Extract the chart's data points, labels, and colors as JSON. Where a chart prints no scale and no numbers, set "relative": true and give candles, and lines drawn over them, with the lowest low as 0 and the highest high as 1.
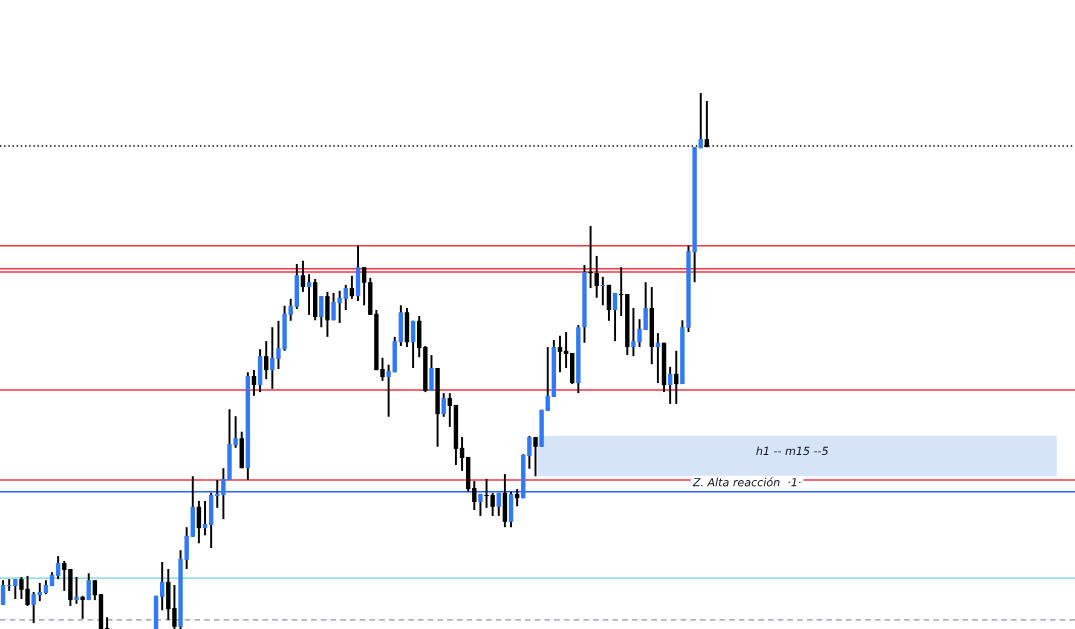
{
  "chart_data": {
    "type": "candlestick",
    "relative": true,
    "categories": [
      null,
      null,
      null,
      null,
      null,
      null,
      null,
      null,
      null,
      null,
      null,
      null,
      null,
      null,
      null,
      null,
      null,
      null,
      null,
      null,
      null,
      null,
      null,
      null,
      null,
      null,
      null,
      null,
      null,
      null,
      null,
      null,
      null,
      null,
      null,
      null,
      null,
      null,
      null,
      null,
      null,
      null,
      null,
      null,
      null,
      null,
      null,
      null,
      null,
      null,
      null,
      null,
      null,
      null,
      null,
      null,
      null,
      null,
      null,
      null,
      null,
      null,
      null,
      null,
      null,
      null,
      null,
      null,
      null,
      null,
      null,
      null,
      null,
      null,
      null,
      null,
      null,
      null,
      null,
      null,
      null,
      null,
      null,
      null,
      null,
      null,
      null,
      null,
      null,
      null,
      null,
      null,
      null,
      null,
      null,
      null,
      null,
      null,
      null,
      null,
      null,
      null,
      null,
      null,
      null,
      null,
      null,
      null,
      null,
      null,
      null,
      null,
      null,
      null,
      null,
      null
    ],
    "ohlc": [
      [
        0.045,
        0.091,
        0.045,
        0.082
      ],
      [
        0.08,
        0.093,
        0.071,
        0.082
      ],
      [
        0.08,
        0.093,
        0.056,
        0.093
      ],
      [
        0.093,
        0.097,
        0.056,
        0.073
      ],
      [
        0.075,
        0.099,
        0.043,
        0.045
      ],
      [
        0.045,
        0.069,
        0.011,
        0.065
      ],
      [
        0.063,
        0.086,
        0.052,
        0.069
      ],
      [
        0.067,
        0.091,
        0.065,
        0.082
      ],
      [
        0.08,
        0.106,
        0.08,
        0.101
      ],
      [
        0.099,
        0.136,
        0.093,
        0.123
      ],
      [
        0.123,
        0.127,
        0.071,
        0.11
      ],
      [
        0.112,
        0.112,
        0.043,
        0.054
      ],
      [
        0.054,
        0.097,
        0.047,
        0.06
      ],
      [
        0.06,
        0.062,
        0.019,
        0.054
      ],
      [
        0.054,
        0.104,
        0.054,
        0.091
      ],
      [
        0.091,
        0.091,
        0.054,
        0.063
      ],
      [
        0.065,
        0.065,
        0,
        0
      ],
      [
        0.002,
        0.022,
        0,
        0
      ],
      null,
      null,
      null,
      null,
      null,
      null,
      null,
      [
        0,
        0.062,
        0,
        0.062
      ],
      [
        0.06,
        0.125,
        0.035,
        0.088
      ],
      [
        0.088,
        0.112,
        0.017,
        0.037
      ],
      [
        0.039,
        0.082,
        0,
        0.004
      ],
      [
        0.004,
        0.147,
        0,
        0.131
      ],
      [
        0.129,
        0.19,
        0.112,
        0.174
      ],
      [
        0.172,
        0.285,
        0.172,
        0.228
      ],
      [
        0.228,
        0.239,
        0.16,
        0.188
      ],
      [
        0.188,
        0.239,
        0.175,
        0.196
      ],
      [
        0.194,
        0.254,
        0.151,
        0.25
      ],
      [
        0.248,
        0.278,
        0.226,
        0.252
      ],
      [
        0.25,
        0.3,
        0.205,
        0.28
      ],
      [
        0.278,
        0.41,
        0.278,
        0.345
      ],
      [
        0.343,
        0.397,
        0.338,
        0.356
      ],
      [
        0.356,
        0.368,
        0.3,
        0.3
      ],
      [
        0.3,
        0.479,
        0.278,
        0.472
      ],
      [
        0.472,
        0.483,
        0.435,
        0.455
      ],
      [
        0.455,
        0.522,
        0.442,
        0.509
      ],
      [
        0.509,
        0.537,
        0.466,
        0.483
      ],
      [
        0.483,
        0.563,
        0.448,
        0.506
      ],
      [
        0.504,
        0.575,
        0.485,
        0.524
      ],
      [
        0.522,
        0.603,
        0.519,
        0.588
      ],
      [
        0.586,
        0.616,
        0.575,
        0.603
      ],
      [
        0.601,
        0.681,
        0.597,
        0.66
      ],
      [
        0.66,
        0.687,
        0.629,
        0.638
      ],
      [
        0.638,
        0.662,
        0.586,
        0.647
      ],
      [
        0.647,
        0.653,
        0.576,
        0.582
      ],
      [
        0.582,
        0.621,
        0.563,
        0.621
      ],
      [
        0.621,
        0.629,
        0.545,
        0.576
      ],
      [
        0.576,
        0.627,
        0.576,
        0.61
      ],
      [
        0.608,
        0.631,
        0.571,
        0.618
      ],
      [
        0.616,
        0.642,
        0.595,
        0.636
      ],
      [
        0.636,
        0.659,
        0.616,
        0.621
      ],
      [
        0.621,
        0.715,
        0.612,
        0.675
      ],
      [
        0.675,
        0.675,
        0.604,
        0.646
      ],
      [
        0.647,
        0.655,
        0.586,
        0.586
      ],
      [
        0.588,
        0.595,
        0.483,
        0.483
      ],
      [
        0.485,
        0.506,
        0.463,
        0.47
      ],
      [
        0.47,
        0.493,
        0.396,
        0.481
      ],
      [
        0.479,
        0.545,
        0.479,
        0.537
      ],
      [
        0.535,
        0.604,
        0.528,
        0.591
      ],
      [
        0.591,
        0.599,
        0.526,
        0.535
      ],
      [
        0.535,
        0.575,
        0.487,
        0.575
      ],
      [
        0.575,
        0.584,
        0.507,
        0.524
      ],
      [
        0.526,
        0.528,
        0.442,
        0.444
      ],
      [
        0.444,
        0.511,
        0.444,
        0.487
      ],
      [
        0.487,
        0.487,
        0.34,
        0.401
      ],
      [
        0.401,
        0.44,
        0.396,
        0.431
      ],
      [
        0.431,
        0.44,
        0.377,
        0.416
      ],
      [
        0.418,
        0.418,
        0.306,
        0.336
      ],
      [
        0.338,
        0.358,
        0.295,
        0.319
      ],
      [
        0.321,
        0.321,
        0.256,
        0.261
      ],
      [
        0.263,
        0.276,
        0.222,
        0.237
      ],
      [
        0.237,
        0.252,
        0.211,
        0.252
      ],
      [
        0.25,
        0.28,
        0.226,
        0.248
      ],
      [
        0.25,
        0.254,
        0.211,
        0.228
      ],
      [
        0.228,
        0.254,
        0.211,
        0.254
      ],
      [
        0.254,
        0.289,
        0.19,
        0.2
      ],
      [
        0.2,
        0.256,
        0.19,
        0.252
      ],
      [
        0.252,
        0.261,
        0.229,
        0.244
      ],
      [
        0.244,
        0.326,
        0.244,
        0.325
      ],
      [
        0.323,
        0.36,
        0.299,
        0.358
      ],
      [
        0.358,
        0.358,
        0.285,
        0.34
      ],
      [
        0.34,
        0.409,
        0.34,
        0.409
      ],
      [
        0.407,
        0.526,
        0.407,
        0.435
      ],
      [
        0.433,
        0.539,
        0.433,
        0.526
      ],
      [
        0.526,
        0.547,
        0.479,
        0.517
      ],
      [
        0.519,
        0.554,
        0.487,
        0.513
      ],
      [
        0.515,
        0.515,
        0.457,
        0.459
      ],
      [
        0.459,
        0.567,
        0.44,
        0.563
      ],
      [
        0.563,
        0.679,
        0.534,
        0.666
      ],
      [
        0.666,
        0.752,
        0.636,
        0.664
      ],
      [
        0.664,
        0.696,
        0.618,
        0.64
      ],
      [
        0.64,
        0.657,
        0.604,
        0.642
      ],
      [
        0.642,
        0.642,
        0.575,
        0.595
      ],
      [
        0.595,
        0.627,
        0.537,
        0.627
      ],
      [
        0.625,
        0.675,
        0.584,
        0.623
      ],
      [
        0.625,
        0.625,
        0.511,
        0.526
      ],
      [
        0.526,
        0.599,
        0.509,
        0.537
      ],
      [
        0.535,
        0.578,
        0.526,
        0.56
      ],
      [
        0.558,
        0.647,
        0.558,
        0.599
      ],
      [
        0.599,
        0.638,
        0.494,
        0.526
      ],
      [
        0.526,
        0.552,
        0.459,
        0.534
      ],
      [
        0.534,
        0.534,
        0.442,
        0.455
      ],
      [
        0.455,
        0.489,
        0.42,
        0.476
      ],
      [
        0.476,
        0.519,
        0.42,
        0.457
      ],
      [
        0.457,
        0.576,
        0.457,
        0.563
      ],
      [
        0.562,
        0.715,
        0.554,
        0.705
      ],
      [
        0.703,
        0.899,
        0.647,
        0.899
      ],
      [
        0.897,
        1.0,
        0.897,
        0.914
      ],
      [
        0.914,
        0.985,
        0.899,
        0.899
      ]
    ],
    "bands": [
      {
        "axis": "y",
        "from": 0.285,
        "to": 0.36,
        "label": "h1 -- m15 --5",
        "color": "#d6e4f8"
      }
    ],
    "ref_lines": [
      {
        "axis": "y",
        "value": 0.666,
        "color": "#f23645",
        "line_style": "solid"
      },
      {
        "axis": "y",
        "value": 0.715,
        "color": "#f23645",
        "line_style": "solid"
      },
      {
        "axis": "y",
        "value": 0.278,
        "color": "#f23645",
        "line_style": "solid"
      },
      {
        "axis": "y",
        "value": 0.672,
        "color": "#f23645",
        "line_style": "solid"
      },
      {
        "axis": "y",
        "value": 0.446,
        "color": "#f23645",
        "line_style": "solid"
      },
      {
        "axis": "y",
        "value": 0.095,
        "color": "#6fd3dc",
        "line_style": "solid"
      },
      {
        "axis": "y",
        "value": 0.256,
        "color": "#2962ff",
        "line_style": "solid",
        "label": "Z. Alta reacción  ·1·"
      },
      {
        "axis": "y",
        "value": 0.901,
        "color": "#000000",
        "line_style": "dotted"
      },
      {
        "axis": "y",
        "value": 0.017,
        "color": "#9598a1",
        "line_style": "dashed"
      }
    ]
  }
}
